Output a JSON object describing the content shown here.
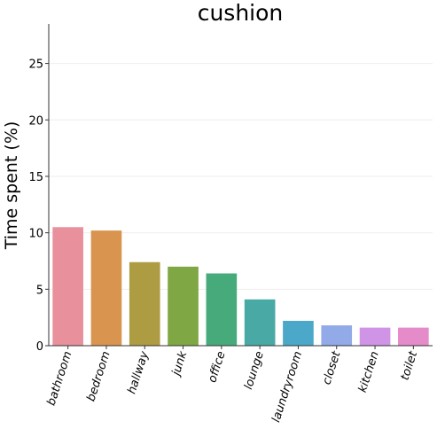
{
  "chart_data": {
    "type": "bar",
    "title": "cushion",
    "xlabel": "",
    "ylabel": "Time spent (%)",
    "categories": [
      "bathroom",
      "bedroom",
      "hallway",
      "junk",
      "office",
      "lounge",
      "laundryroom",
      "closet",
      "kitchen",
      "toilet"
    ],
    "values": [
      10.5,
      10.2,
      7.4,
      7.0,
      6.4,
      4.1,
      2.2,
      1.8,
      1.6,
      1.6
    ],
    "colors": [
      "#e8919c",
      "#d99550",
      "#ad9c42",
      "#7fa743",
      "#47aa7a",
      "#48a9a5",
      "#4ba8c8",
      "#92aae8",
      "#cf94e6",
      "#e68bc9"
    ],
    "ylim": [
      0,
      28.5
    ],
    "yticks": [
      0,
      5,
      10,
      15,
      20,
      25
    ],
    "grid": true
  }
}
